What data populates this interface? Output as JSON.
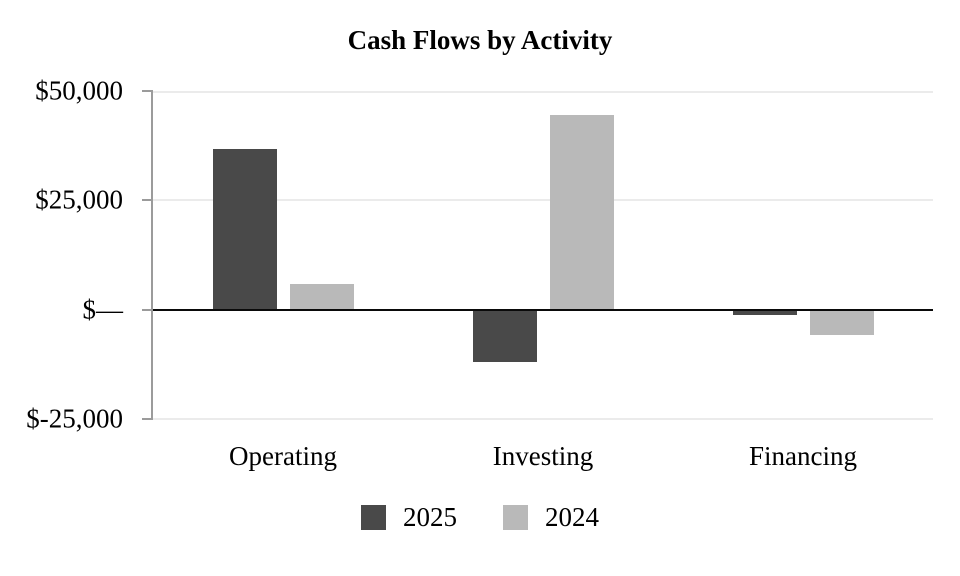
{
  "chart_data": {
    "type": "bar",
    "title": "Cash Flows by Activity",
    "categories": [
      "Operating",
      "Investing",
      "Financing"
    ],
    "series": [
      {
        "name": "2025",
        "color": "#494949",
        "values": [
          36800,
          -12000,
          -1250
        ]
      },
      {
        "name": "2024",
        "color": "#b9b9b9",
        "values": [
          6000,
          44600,
          -5800
        ]
      }
    ],
    "y_axis": {
      "min": -25000,
      "max": 50000,
      "ticks": [
        {
          "value": 50000,
          "label": "$50,000"
        },
        {
          "value": 25000,
          "label": "$25,000"
        },
        {
          "value": 0,
          "label": "$—"
        },
        {
          "value": -25000,
          "label": "$-25,000"
        }
      ]
    },
    "legend": {
      "position": "bottom"
    },
    "grid": true,
    "colors": {
      "gridline": "#ebebeb",
      "axis": "#9b9b9b",
      "zero_line": "#0a0a0a",
      "text": "#000000",
      "background": "#ffffff"
    }
  }
}
